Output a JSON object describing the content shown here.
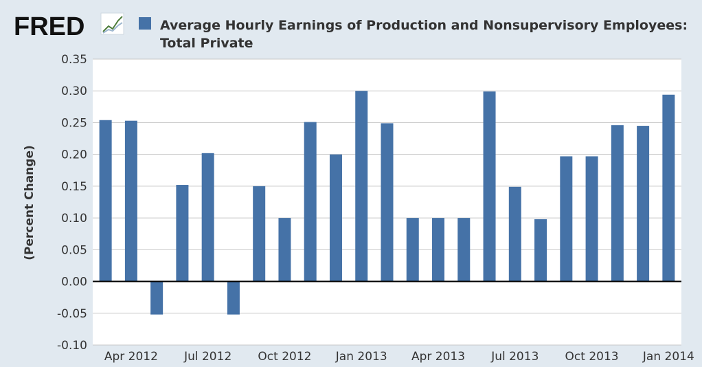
{
  "header": {
    "logo_text": "FRED",
    "legend_label_line1": "Average Hourly Earnings of Production and Nonsupervisory Employees:",
    "legend_label_line2": "Total Private"
  },
  "colors": {
    "background": "#e1e9f0",
    "plot_background": "#ffffff",
    "bar": "#4572a7",
    "grid": "#c8c8c8",
    "zero_line": "#000000",
    "text": "#333333"
  },
  "chart_data": {
    "type": "bar",
    "title": "",
    "xlabel": "",
    "ylabel": "(Percent Change)",
    "ylim": [
      -0.1,
      0.35
    ],
    "yticks": [
      "0.35",
      "0.30",
      "0.25",
      "0.20",
      "0.15",
      "0.10",
      "0.05",
      "0.00",
      "-0.05",
      "-0.10"
    ],
    "grid": true,
    "legend_placement": "top",
    "categories": [
      "Mar 2012",
      "Apr 2012",
      "May 2012",
      "Jun 2012",
      "Jul 2012",
      "Aug 2012",
      "Sep 2012",
      "Oct 2012",
      "Nov 2012",
      "Dec 2012",
      "Jan 2013",
      "Feb 2013",
      "Mar 2013",
      "Apr 2013",
      "May 2013",
      "Jun 2013",
      "Jul 2013",
      "Aug 2013",
      "Sep 2013",
      "Oct 2013",
      "Nov 2013",
      "Dec 2013",
      "Jan 2014"
    ],
    "x_tick_labels": [
      {
        "category": "Apr 2012",
        "label": "Apr 2012"
      },
      {
        "category": "Jul 2012",
        "label": "Jul 2012"
      },
      {
        "category": "Oct 2012",
        "label": "Oct 2012"
      },
      {
        "category": "Jan 2013",
        "label": "Jan 2013"
      },
      {
        "category": "Apr 2013",
        "label": "Apr 2013"
      },
      {
        "category": "Jul 2013",
        "label": "Jul 2013"
      },
      {
        "category": "Oct 2013",
        "label": "Oct 2013"
      },
      {
        "category": "Jan 2014",
        "label": "Jan 2014"
      }
    ],
    "series": [
      {
        "name": "Average Hourly Earnings of Production and Nonsupervisory Employees: Total Private",
        "values": [
          0.254,
          0.253,
          -0.052,
          0.152,
          0.202,
          -0.052,
          0.15,
          0.1,
          0.251,
          0.2,
          0.3,
          0.249,
          0.1,
          0.1,
          0.1,
          0.299,
          0.149,
          0.098,
          0.197,
          0.197,
          0.246,
          0.245,
          0.294
        ]
      }
    ]
  }
}
